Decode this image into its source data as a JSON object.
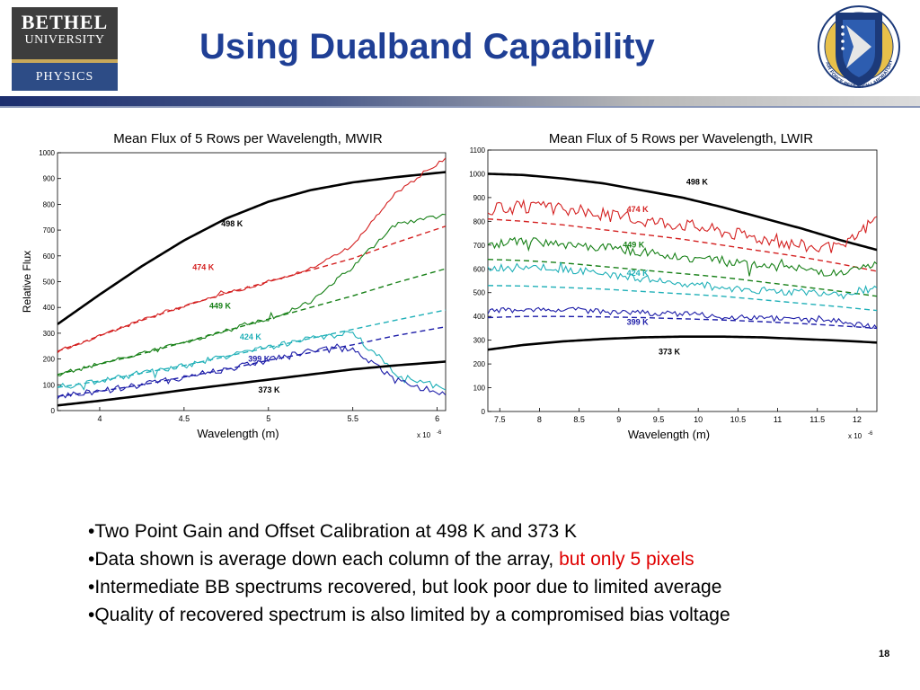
{
  "header": {
    "logo": {
      "line1": "BETHEL",
      "line2": "UNIVERSITY",
      "line3": "PHYSICS"
    },
    "title": "Using Dualband Capability",
    "emblem": {
      "icon": "air-force-research-laboratory-emblem",
      "text": "AIR FORCE RESEARCH LABORATORY"
    }
  },
  "chart_data": [
    {
      "type": "line",
      "title": "Mean Flux of 5 Rows per Wavelength, MWIR",
      "xlabel": "Wavelength (m)",
      "ylabel": "Relative Flux",
      "x_multiplier": "x 10",
      "x_multiplier_exp": "-6",
      "xlim": [
        3.75,
        6.05
      ],
      "ylim": [
        0,
        1000
      ],
      "xticks": [
        "4",
        "4.5",
        "5",
        "5.5",
        "6"
      ],
      "xtick_values": [
        4,
        4.5,
        5,
        5.5,
        6
      ],
      "yticks": [
        "0",
        "100",
        "200",
        "300",
        "400",
        "500",
        "600",
        "700",
        "800",
        "900",
        "1000"
      ],
      "ytick_values": [
        0,
        100,
        200,
        300,
        400,
        500,
        600,
        700,
        800,
        900,
        1000
      ],
      "x": [
        3.75,
        4.0,
        4.25,
        4.5,
        4.75,
        5.0,
        5.25,
        5.5,
        5.75,
        6.05
      ],
      "series": [
        {
          "name": "498 K",
          "color": "#000000",
          "values": [
            335,
            450,
            560,
            660,
            745,
            810,
            855,
            885,
            905,
            925
          ]
        },
        {
          "name": "474 K",
          "color": "#d42020",
          "values": [
            230,
            290,
            350,
            405,
            455,
            500,
            550,
            640,
            840,
            980
          ]
        },
        {
          "name": "449 K",
          "color": "#178017",
          "values": [
            140,
            180,
            220,
            265,
            310,
            355,
            420,
            560,
            720,
            760
          ]
        },
        {
          "name": "424 K",
          "color": "#20b0b8",
          "values": [
            90,
            115,
            145,
            175,
            210,
            245,
            280,
            300,
            150,
            80
          ]
        },
        {
          "name": "399 K",
          "color": "#1c1ca8",
          "values": [
            55,
            75,
            100,
            130,
            160,
            195,
            230,
            240,
            120,
            60
          ]
        },
        {
          "name": "373 K",
          "color": "#000000",
          "values": [
            20,
            38,
            58,
            80,
            100,
            120,
            140,
            160,
            175,
            190
          ]
        }
      ],
      "fits": [
        {
          "color": "#d42020",
          "values": [
            230,
            290,
            350,
            405,
            455,
            500,
            545,
            590,
            650,
            715
          ]
        },
        {
          "color": "#178017",
          "values": [
            140,
            180,
            220,
            265,
            310,
            355,
            400,
            445,
            495,
            550
          ]
        },
        {
          "color": "#20b0b8",
          "values": [
            90,
            115,
            145,
            175,
            210,
            245,
            280,
            315,
            350,
            390
          ]
        },
        {
          "color": "#1c1ca8",
          "values": [
            55,
            75,
            100,
            130,
            160,
            195,
            225,
            255,
            290,
            325
          ]
        }
      ],
      "labels": [
        {
          "text": "498 K",
          "x": 4.72,
          "y": 715,
          "color": "#000000"
        },
        {
          "text": "474 K",
          "x": 4.55,
          "y": 545,
          "color": "#d42020"
        },
        {
          "text": "449 K",
          "x": 4.65,
          "y": 395,
          "color": "#178017"
        },
        {
          "text": "424 K",
          "x": 4.83,
          "y": 275,
          "color": "#20b0b8"
        },
        {
          "text": "399 K",
          "x": 4.88,
          "y": 190,
          "color": "#1c1ca8"
        },
        {
          "text": "373 K",
          "x": 4.94,
          "y": 70,
          "color": "#000000"
        }
      ]
    },
    {
      "type": "line",
      "title": "Mean Flux of 5 Rows per Wavelength, LWIR",
      "xlabel": "Wavelength (m)",
      "ylabel": "",
      "x_multiplier": "x 10",
      "x_multiplier_exp": "-6",
      "xlim": [
        7.35,
        12.25
      ],
      "ylim": [
        0,
        1100
      ],
      "xticks": [
        "7.5",
        "8",
        "8.5",
        "9",
        "9.5",
        "10",
        "10.5",
        "11",
        "11.5",
        "12"
      ],
      "xtick_values": [
        7.5,
        8,
        8.5,
        9,
        9.5,
        10,
        10.5,
        11,
        11.5,
        12
      ],
      "yticks": [
        "0",
        "100",
        "200",
        "300",
        "400",
        "500",
        "600",
        "700",
        "800",
        "900",
        "1000",
        "1100"
      ],
      "ytick_values": [
        0,
        100,
        200,
        300,
        400,
        500,
        600,
        700,
        800,
        900,
        1000,
        1100
      ],
      "x": [
        7.35,
        7.8,
        8.3,
        8.8,
        9.3,
        9.8,
        10.3,
        10.8,
        11.3,
        11.8,
        12.25
      ],
      "series": [
        {
          "name": "498 K",
          "color": "#000000",
          "values": [
            1000,
            995,
            980,
            960,
            930,
            900,
            860,
            815,
            770,
            720,
            680
          ]
        },
        {
          "name": "474 K",
          "color": "#d42020",
          "values": [
            850,
            860,
            850,
            830,
            805,
            790,
            760,
            730,
            700,
            680,
            820
          ]
        },
        {
          "name": "449 K",
          "color": "#178017",
          "values": [
            700,
            720,
            700,
            690,
            670,
            650,
            630,
            610,
            600,
            580,
            620
          ]
        },
        {
          "name": "424 K",
          "color": "#20b0b8",
          "values": [
            600,
            610,
            600,
            580,
            560,
            540,
            520,
            510,
            500,
            500,
            520
          ]
        },
        {
          "name": "399 K",
          "color": "#1c1ca8",
          "values": [
            420,
            430,
            430,
            420,
            415,
            410,
            400,
            395,
            385,
            380,
            350
          ]
        },
        {
          "name": "373 K",
          "color": "#000000",
          "values": [
            260,
            280,
            295,
            305,
            312,
            315,
            315,
            312,
            305,
            298,
            290
          ]
        }
      ],
      "fits": [
        {
          "color": "#d42020",
          "values": [
            810,
            800,
            785,
            765,
            745,
            725,
            700,
            675,
            650,
            620,
            590
          ]
        },
        {
          "color": "#178017",
          "values": [
            640,
            635,
            625,
            610,
            595,
            580,
            565,
            545,
            525,
            505,
            485
          ]
        },
        {
          "color": "#20b0b8",
          "values": [
            530,
            528,
            522,
            515,
            505,
            495,
            485,
            470,
            455,
            440,
            425
          ]
        },
        {
          "color": "#1c1ca8",
          "values": [
            395,
            400,
            400,
            398,
            395,
            390,
            385,
            378,
            370,
            360,
            350
          ]
        }
      ],
      "labels": [
        {
          "text": "498 K",
          "x": 9.85,
          "y": 955,
          "color": "#000000"
        },
        {
          "text": "474 K",
          "x": 9.1,
          "y": 840,
          "color": "#d42020"
        },
        {
          "text": "449 K",
          "x": 9.05,
          "y": 690,
          "color": "#178017"
        },
        {
          "text": "424 K",
          "x": 9.1,
          "y": 570,
          "color": "#20b0b8"
        },
        {
          "text": "399 K",
          "x": 9.1,
          "y": 365,
          "color": "#1c1ca8"
        },
        {
          "text": "373 K",
          "x": 9.5,
          "y": 240,
          "color": "#000000"
        }
      ]
    }
  ],
  "bullets": {
    "b1": "•Two Point Gain and Offset Calibration at 498 K and 373 K",
    "b2_prefix": "•Data shown is average down each column of the array, ",
    "b2_red": "but only 5 pixels",
    "b3": "•Intermediate BB spectrums recovered, but look poor due to limited average",
    "b4": "•Quality of recovered spectrum is also limited by a compromised bias voltage"
  },
  "footer": {
    "slide_number": "18"
  },
  "colors": {
    "title": "#1f3f95",
    "accent_red": "#e00000"
  }
}
